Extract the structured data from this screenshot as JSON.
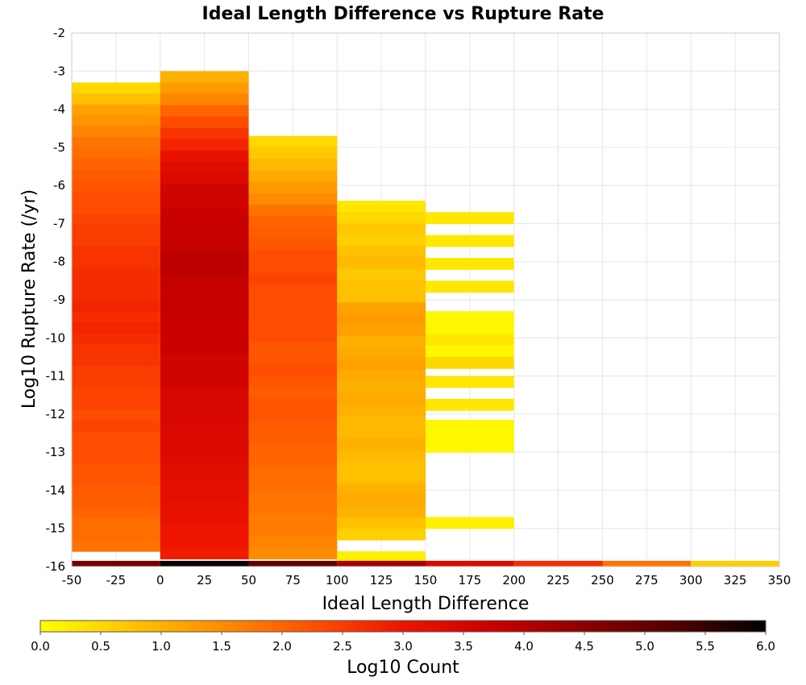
{
  "chart_data": {
    "type": "heatmap",
    "title": "Ideal Length Difference vs Rupture Rate",
    "xlabel": "Ideal Length Difference",
    "ylabel": "Log10 Rupture Rate (/yr)",
    "xlim": [
      -50,
      350
    ],
    "ylim": [
      -16,
      -2
    ],
    "x_ticks": [
      "-50",
      "-25",
      "0",
      "25",
      "50",
      "75",
      "100",
      "125",
      "150",
      "175",
      "200",
      "225",
      "250",
      "275",
      "300",
      "325",
      "350"
    ],
    "y_ticks": [
      "-2",
      "-3",
      "-4",
      "-5",
      "-6",
      "-7",
      "-8",
      "-9",
      "-10",
      "-11",
      "-12",
      "-13",
      "-14",
      "-15",
      "-16"
    ],
    "grid": true,
    "colorbar": {
      "label": "Log10 Count",
      "range": [
        0,
        6
      ],
      "ticks": [
        "0.0",
        "0.5",
        "1.0",
        "1.5",
        "2.0",
        "2.5",
        "3.0",
        "3.5",
        "4.0",
        "4.5",
        "5.0",
        "5.5",
        "6.0"
      ],
      "colors": [
        "#ffff00",
        "#ffc400",
        "#ff8c00",
        "#ff5000",
        "#ee1400",
        "#c80000",
        "#8c0000",
        "#500000",
        "#000000"
      ]
    },
    "x_bin_width": 50,
    "y_bin_height": 0.3,
    "columns": [
      {
        "x_start": -50,
        "y_top": -3.3,
        "y_bottom": -15.6,
        "values": [
          0.5,
          0.8,
          1.2,
          1.4,
          1.6,
          1.8,
          1.9,
          2.0,
          2.1,
          2.2,
          2.3,
          2.3,
          2.4,
          2.5,
          2.5,
          2.6,
          2.6,
          2.7,
          2.7,
          2.7,
          2.8,
          2.7,
          2.8,
          2.7,
          2.6,
          2.6,
          2.5,
          2.5,
          2.4,
          2.4,
          2.3,
          2.4,
          2.3,
          2.3,
          2.3,
          2.2,
          2.2,
          2.1,
          2.1,
          2.0,
          1.9,
          1.9,
          1.8
        ]
      },
      {
        "x_start": 0,
        "y_top": -3.0,
        "y_bottom": -15.8,
        "values": [
          1.0,
          1.3,
          1.6,
          2.0,
          2.3,
          2.6,
          2.8,
          3.1,
          3.3,
          3.4,
          3.6,
          3.6,
          3.7,
          3.8,
          3.8,
          3.8,
          3.9,
          3.9,
          3.8,
          3.8,
          3.8,
          3.8,
          3.7,
          3.7,
          3.7,
          3.6,
          3.6,
          3.6,
          3.5,
          3.5,
          3.5,
          3.4,
          3.4,
          3.4,
          3.3,
          3.3,
          3.2,
          3.2,
          3.1,
          3.1,
          3.0,
          3.0,
          2.9
        ]
      },
      {
        "x_start": 50,
        "y_top": -4.7,
        "y_bottom": -15.8,
        "values": [
          0.5,
          0.7,
          0.9,
          1.1,
          1.3,
          1.5,
          1.8,
          2.0,
          2.1,
          2.2,
          2.3,
          2.3,
          2.4,
          2.3,
          2.3,
          2.3,
          2.3,
          2.3,
          2.2,
          2.2,
          2.3,
          2.2,
          2.1,
          2.2,
          2.2,
          2.1,
          2.1,
          2.0,
          2.0,
          1.9,
          1.9,
          1.8,
          1.8,
          1.7,
          1.7,
          1.6,
          1.5
        ]
      },
      {
        "x_start": 100,
        "y_top": -6.4,
        "y_bottom": -15.3,
        "values": [
          0.3,
          0.5,
          0.7,
          0.6,
          0.8,
          0.9,
          0.7,
          0.8,
          0.8,
          1.2,
          1.3,
          1.2,
          1.0,
          1.1,
          1.2,
          1.1,
          1.0,
          1.1,
          1.0,
          0.9,
          0.9,
          1.0,
          0.9,
          0.8,
          0.8,
          1.0,
          1.1,
          1.0,
          0.8,
          0.6
        ]
      },
      {
        "x_start": 100,
        "y_top": -15.6,
        "y_bottom": -15.9,
        "values": [
          0.2
        ]
      },
      {
        "x_start": 150,
        "y_top": -6.7,
        "y_bottom": -7.0,
        "values": [
          0.3
        ]
      },
      {
        "x_start": 150,
        "y_top": -7.3,
        "y_bottom": -7.6,
        "values": [
          0.3
        ]
      },
      {
        "x_start": 150,
        "y_top": -7.9,
        "y_bottom": -8.2,
        "values": [
          0.3
        ]
      },
      {
        "x_start": 150,
        "y_top": -8.5,
        "y_bottom": -8.8,
        "values": [
          0.3
        ]
      },
      {
        "x_start": 150,
        "y_top": -9.3,
        "y_bottom": -10.8,
        "values": [
          0.1,
          0.1,
          0.3,
          0.1,
          0.5
        ]
      },
      {
        "x_start": 150,
        "y_top": -11.0,
        "y_bottom": -11.3,
        "values": [
          0.3
        ]
      },
      {
        "x_start": 150,
        "y_top": -11.6,
        "y_bottom": -11.9,
        "values": [
          0.3
        ]
      },
      {
        "x_start": 150,
        "y_top": -12.15,
        "y_bottom": -13.0,
        "values": [
          0.1,
          0.1,
          0.1
        ]
      },
      {
        "x_start": 150,
        "y_top": -14.7,
        "y_bottom": -15.0,
        "values": [
          0.2
        ]
      }
    ],
    "bottom_row": {
      "y_top": -15.85,
      "y_bottom": -16.0,
      "cells": [
        {
          "x_start": -50,
          "value": 4.8
        },
        {
          "x_start": 0,
          "value": 5.9
        },
        {
          "x_start": 50,
          "value": 5.0
        },
        {
          "x_start": 100,
          "value": 4.2
        },
        {
          "x_start": 150,
          "value": 3.4
        },
        {
          "x_start": 200,
          "value": 2.7
        },
        {
          "x_start": 250,
          "value": 1.8
        },
        {
          "x_start": 300,
          "value": 0.6
        }
      ]
    }
  }
}
